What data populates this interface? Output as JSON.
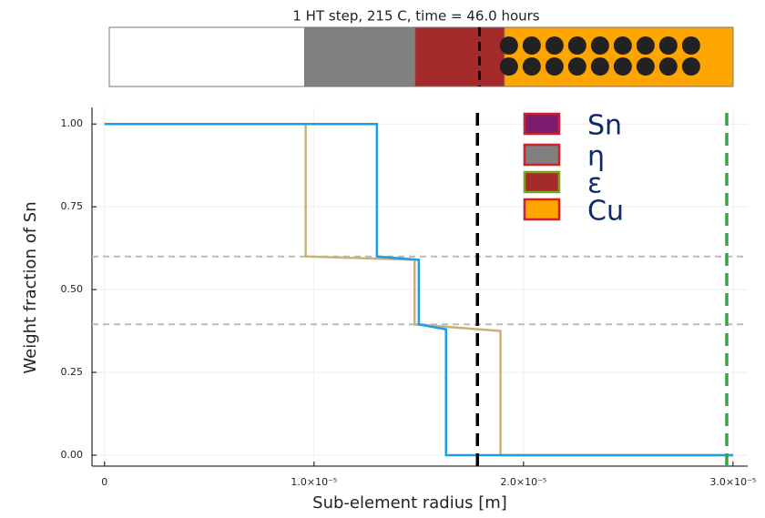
{
  "chart_data": {
    "type": "line",
    "title": "1 HT step, 215 C, time = 46.0 hours",
    "xlabel": "Sub-element radius [m]",
    "ylabel": "Weight fraction of Sn",
    "xlim": [
      -6e-07,
      3.07e-05
    ],
    "ylim": [
      -0.033,
      1.05
    ],
    "xticks": [
      {
        "value": 0,
        "label": "0"
      },
      {
        "value": 1e-05,
        "label": "1.0×10⁻⁵"
      },
      {
        "value": 2e-05,
        "label": "2.0×10⁻⁵"
      },
      {
        "value": 3e-05,
        "label": "3.0×10⁻⁵"
      }
    ],
    "yticks": [
      {
        "value": 0,
        "label": "0.00"
      },
      {
        "value": 0.25,
        "label": "0.25"
      },
      {
        "value": 0.5,
        "label": "0.50"
      },
      {
        "value": 0.75,
        "label": "0.75"
      },
      {
        "value": 1,
        "label": "1.00"
      }
    ],
    "grid": true,
    "series": [
      {
        "color": "#c8b27a",
        "x": [
          0,
          9.6e-06,
          9.6e-06,
          1.48e-05,
          1.48e-05,
          1.89e-05,
          1.89e-05,
          3e-05
        ],
        "values": [
          1,
          1,
          0.6,
          0.59,
          0.395,
          0.375,
          0,
          0
        ]
      },
      {
        "color": "#1e9bea",
        "x": [
          0,
          1.3e-05,
          1.3e-05,
          1.5e-05,
          1.5e-05,
          1.63e-05,
          1.63e-05,
          3e-05
        ],
        "values": [
          1,
          1,
          0.6,
          0.59,
          0.395,
          0.38,
          0,
          0
        ]
      }
    ],
    "hlines": [
      0.6,
      0.395
    ],
    "vlines": [
      {
        "value": 1.78e-05,
        "color": "#000000"
      },
      {
        "value": 2.97e-05,
        "color": "#3aa04a"
      }
    ],
    "legend": [
      {
        "label": "Sn",
        "color": "#7b1c6e",
        "edge": "#d0202a"
      },
      {
        "label": "η",
        "color": "#808080",
        "edge": "#d0202a"
      },
      {
        "label": "ε",
        "color": "#a52a2a",
        "edge": "#7aa51a"
      },
      {
        "label": "Cu",
        "color": "#ffa500",
        "edge": "#d0202a"
      }
    ],
    "phase_bar": {
      "xlim": [
        0,
        3e-05
      ],
      "boundaries": [
        0,
        9.4e-06,
        1.47e-05,
        1.9e-05,
        3e-05
      ],
      "colors": [
        "#ffffff",
        "#808080",
        "#a52a2a",
        "#ffa500"
      ],
      "marker": 1.78e-05
    }
  }
}
